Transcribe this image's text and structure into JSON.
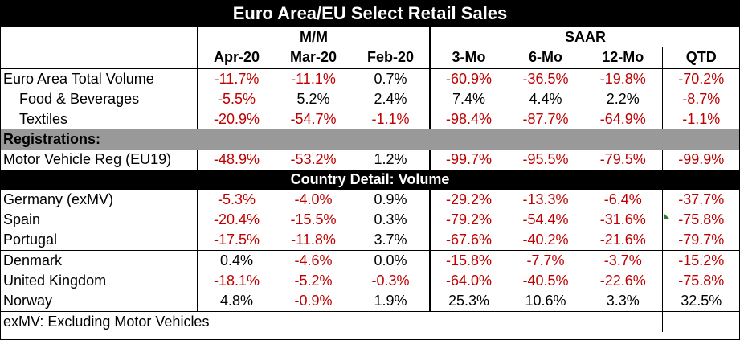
{
  "title": "Euro Area/EU Select Retail Sales",
  "header": {
    "group_mm": "M/M",
    "group_saar": "SAAR",
    "columns": [
      "Apr-20",
      "Mar-20",
      "Feb-20",
      "3-Mo",
      "6-Mo",
      "12-Mo",
      "QTD"
    ]
  },
  "section_registrations": "Registrations:",
  "section_country": "Country Detail: Volume",
  "rows": {
    "euro_total": {
      "label": "Euro Area Total Volume",
      "values": [
        "-11.7%",
        "-11.1%",
        "0.7%",
        "-60.9%",
        "-36.5%",
        "-19.8%",
        "-70.2%"
      ]
    },
    "food": {
      "label": "Food & Beverages",
      "values": [
        "-5.5%",
        "5.2%",
        "2.4%",
        "7.4%",
        "4.4%",
        "2.2%",
        "-8.7%"
      ]
    },
    "textiles": {
      "label": "Textiles",
      "values": [
        "-20.9%",
        "-54.7%",
        "-1.1%",
        "-98.4%",
        "-87.7%",
        "-64.9%",
        "-1.1%"
      ]
    },
    "motor": {
      "label": "Motor Vehicle Reg (EU19)",
      "values": [
        "-48.9%",
        "-53.2%",
        "1.2%",
        "-99.7%",
        "-95.5%",
        "-79.5%",
        "-99.9%"
      ]
    },
    "germany": {
      "label": "Germany (exMV)",
      "values": [
        "-5.3%",
        "-4.0%",
        "0.9%",
        "-29.2%",
        "-13.3%",
        "-6.4%",
        "-37.7%"
      ]
    },
    "spain": {
      "label": "Spain",
      "values": [
        "-20.4%",
        "-15.5%",
        "0.3%",
        "-79.2%",
        "-54.4%",
        "-31.6%",
        "-75.8%"
      ]
    },
    "portugal": {
      "label": "Portugal",
      "values": [
        "-17.5%",
        "-11.8%",
        "3.7%",
        "-67.6%",
        "-40.2%",
        "-21.6%",
        "-79.7%"
      ]
    },
    "denmark": {
      "label": "Denmark",
      "values": [
        "0.4%",
        "-4.6%",
        "0.0%",
        "-15.8%",
        "-7.7%",
        "-3.7%",
        "-15.2%"
      ]
    },
    "uk": {
      "label": "United Kingdom",
      "values": [
        "-18.1%",
        "-5.2%",
        "-0.3%",
        "-64.0%",
        "-40.5%",
        "-22.6%",
        "-75.8%"
      ]
    },
    "norway": {
      "label": "Norway",
      "values": [
        "4.8%",
        "-0.9%",
        "1.9%",
        "25.3%",
        "10.6%",
        "3.3%",
        "32.5%"
      ]
    }
  },
  "footnote": "exMV: Excluding Motor Vehicles",
  "colors": {
    "negative": "#c00000",
    "positive": "#000000",
    "band_gray": "#999999",
    "band_black": "#000000"
  }
}
